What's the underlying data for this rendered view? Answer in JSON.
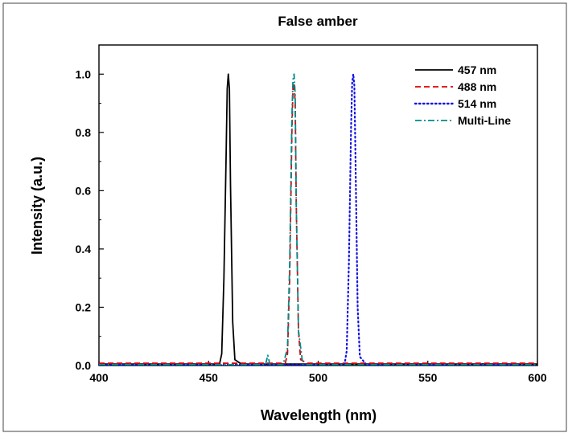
{
  "chart_data": {
    "type": "line",
    "title": "False amber",
    "xlabel": "Wavelength (nm)",
    "ylabel": "Intensity (a.u.)",
    "xlim": [
      400,
      600
    ],
    "ylim": [
      0,
      1.1
    ],
    "xticks": [
      400,
      450,
      500,
      550,
      600
    ],
    "yticks": [
      0.0,
      0.2,
      0.4,
      0.6,
      0.8,
      1.0
    ],
    "xtick_labels": [
      "400",
      "450",
      "500",
      "550",
      "600"
    ],
    "ytick_labels": [
      "0.0",
      "0.2",
      "0.4",
      "0.6",
      "0.8",
      "1.0"
    ],
    "grid": false,
    "legend_position": "top-right",
    "series": [
      {
        "name": "457 nm",
        "color": "#000000",
        "dash": "solid",
        "x": [
          400,
          455,
          456,
          457,
          458,
          458.5,
          459,
          459.5,
          460,
          461,
          462,
          465,
          600
        ],
        "y": [
          0.005,
          0.005,
          0.04,
          0.3,
          0.72,
          0.95,
          1.0,
          0.95,
          0.62,
          0.15,
          0.02,
          0.005,
          0.005
        ]
      },
      {
        "name": "488 nm",
        "color": "#e00000",
        "dash": "dashed",
        "x": [
          400,
          485,
          486,
          487,
          488,
          488.5,
          489,
          489.5,
          490,
          491,
          492,
          495,
          600
        ],
        "y": [
          0.008,
          0.008,
          0.04,
          0.3,
          0.8,
          0.95,
          0.97,
          0.9,
          0.55,
          0.12,
          0.02,
          0.008,
          0.008
        ]
      },
      {
        "name": "514 nm",
        "color": "#1414e0",
        "dash": "dotted",
        "x": [
          400,
          512,
          513,
          514,
          515,
          515.5,
          516,
          516.5,
          517,
          518,
          519,
          522,
          600
        ],
        "y": [
          0.003,
          0.003,
          0.05,
          0.35,
          0.82,
          0.97,
          1.0,
          0.96,
          0.72,
          0.2,
          0.03,
          0.003,
          0.003
        ]
      },
      {
        "name": "Multi-Line",
        "color": "#008a8a",
        "dash": "dashdot",
        "x": [
          400,
          476,
          477,
          478,
          484,
          486,
          487,
          488,
          488.5,
          489,
          489.5,
          490,
          491,
          493,
          600
        ],
        "y": [
          0.003,
          0.003,
          0.035,
          0.003,
          0.003,
          0.06,
          0.35,
          0.85,
          0.98,
          1.0,
          0.93,
          0.55,
          0.12,
          0.003,
          0.003
        ]
      }
    ]
  }
}
